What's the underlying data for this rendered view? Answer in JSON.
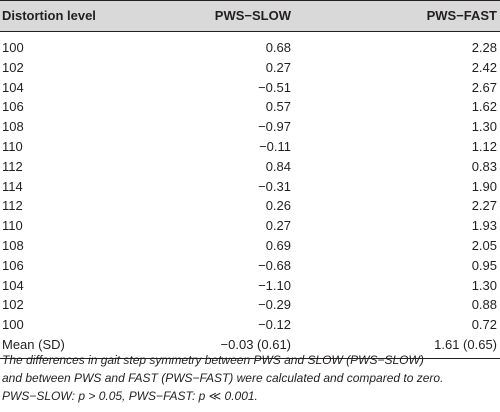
{
  "table": {
    "headers": [
      "Distortion level",
      "PWS−SLOW",
      "PWS−FAST"
    ],
    "rows": [
      [
        "100",
        "0.68",
        "2.28"
      ],
      [
        "102",
        "0.27",
        "2.42"
      ],
      [
        "104",
        "−0.51",
        "2.67"
      ],
      [
        "106",
        "0.57",
        "1.62"
      ],
      [
        "108",
        "−0.97",
        "1.30"
      ],
      [
        "110",
        "−0.11",
        "1.12"
      ],
      [
        "112",
        "0.84",
        "0.83"
      ],
      [
        "114",
        "−0.31",
        "1.90"
      ],
      [
        "112",
        "0.26",
        "2.27"
      ],
      [
        "110",
        "0.27",
        "1.93"
      ],
      [
        "108",
        "0.69",
        "2.05"
      ],
      [
        "106",
        "−0.68",
        "0.95"
      ],
      [
        "104",
        "−1.10",
        "1.30"
      ],
      [
        "102",
        "−0.29",
        "0.88"
      ],
      [
        "100",
        "−0.12",
        "0.72"
      ],
      [
        "Mean (SD)",
        "−0.03 (0.61)",
        "1.61 (0.65)"
      ]
    ]
  },
  "footnote": {
    "line1": "The differences in gait step symmetry between PWS and SLOW (PWS−SLOW)",
    "line2": "and between PWS and FAST (PWS−FAST) were calculated and compared to zero.",
    "line3": "PWS−SLOW: p > 0.05, PWS−FAST: p ≪ 0.001."
  }
}
